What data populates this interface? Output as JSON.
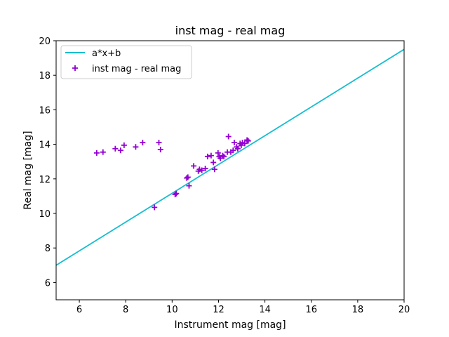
{
  "chart_data": {
    "type": "scatter",
    "title": "inst mag - real mag",
    "xlabel": "Instrument mag [mag]",
    "ylabel": "Real mag [mag]",
    "xlim": [
      5,
      20
    ],
    "ylim": [
      5,
      20
    ],
    "xticks": [
      "6",
      "8",
      "10",
      "12",
      "14",
      "16",
      "18",
      "20"
    ],
    "yticks": [
      "6",
      "8",
      "10",
      "12",
      "14",
      "16",
      "18",
      "20"
    ],
    "grid": false,
    "legend_position": "top-left",
    "series": [
      {
        "name": "a*x+b",
        "kind": "line",
        "color": "#17becf",
        "x": [
          5,
          20
        ],
        "y": [
          7.0,
          19.5
        ]
      },
      {
        "name": "inst mag - real mag",
        "kind": "scatter",
        "marker": "plus",
        "color": "#9400d3",
        "x": [
          6.75,
          7.02,
          7.55,
          7.78,
          7.93,
          8.43,
          8.73,
          9.24,
          9.43,
          9.5,
          10.13,
          10.18,
          10.63,
          10.68,
          10.73,
          10.93,
          11.13,
          11.18,
          11.28,
          11.43,
          11.53,
          11.68,
          11.78,
          11.83,
          11.98,
          12.03,
          12.08,
          12.18,
          12.23,
          12.38,
          12.43,
          12.53,
          12.63,
          12.68,
          12.78,
          12.83,
          12.93,
          12.98,
          13.03,
          13.13,
          13.23,
          13.28
        ],
        "y": [
          13.5,
          13.55,
          13.75,
          13.65,
          13.95,
          13.85,
          14.1,
          10.35,
          14.1,
          13.7,
          11.1,
          11.15,
          12.05,
          12.1,
          11.6,
          12.75,
          12.45,
          12.55,
          12.5,
          12.6,
          13.3,
          13.35,
          12.95,
          12.55,
          13.5,
          13.3,
          13.2,
          13.35,
          13.3,
          13.55,
          14.45,
          13.55,
          13.65,
          14.1,
          13.85,
          13.75,
          14.05,
          13.95,
          14.1,
          14.05,
          14.25,
          14.2
        ]
      }
    ]
  }
}
